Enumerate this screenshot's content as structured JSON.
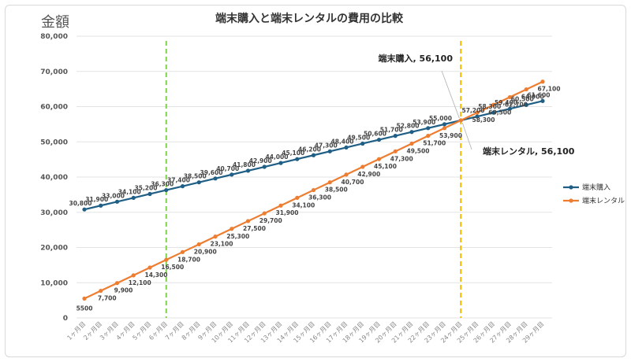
{
  "chart_data": {
    "type": "line",
    "title": "端末購入と端末レンタルの費用の比較",
    "ylabel": "金額",
    "xlabel": "",
    "ylim": [
      0,
      80000
    ],
    "yticks": [
      "0",
      "10,000",
      "20,000",
      "30,000",
      "40,000",
      "50,000",
      "60,000",
      "70,000",
      "80,000"
    ],
    "grid": true,
    "legend": "right",
    "categories": [
      "1ヶ月目",
      "2ヶ月目",
      "3ヶ月目",
      "4ヶ月目",
      "5ヶ月目",
      "6ヶ月目",
      "7ヶ月目",
      "8ヶ月目",
      "9ヶ月目",
      "10ヶ月目",
      "11ヶ月目",
      "12ヶ月目",
      "13ヶ月目",
      "14ヶ月目",
      "15ヶ月目",
      "16ヶ月目",
      "17ヶ月目",
      "18ヶ月目",
      "19ヶ月目",
      "20ヶ月目",
      "21ヶ月目",
      "22ヶ月目",
      "23ヶ月目",
      "24ヶ月目",
      "25ヶ月目",
      "26ヶ月目",
      "27ヶ月目",
      "28ヶ月目",
      "29ヶ月目"
    ],
    "series": [
      {
        "name": "端末購入",
        "color": "#1f5f86",
        "values": [
          30800,
          31900,
          33000,
          34100,
          35200,
          36300,
          37400,
          38500,
          39600,
          40700,
          41800,
          42900,
          44000,
          45100,
          46200,
          47300,
          48400,
          49500,
          50600,
          51700,
          52800,
          53900,
          55000,
          56100,
          57200,
          58300,
          59400,
          60500,
          61600
        ],
        "labels": [
          "30,800",
          "31,900",
          "33,000",
          "34,100",
          "35,200",
          "36,300",
          "37,400",
          "38,500",
          "39,600",
          "40,700",
          "41,800",
          "42,900",
          "44,000",
          "45,100",
          "46,200",
          "47,300",
          "48,400",
          "49,500",
          "50,600",
          "51,700",
          "52,800",
          "53,900",
          "55,000",
          "",
          "57,200",
          "58,300",
          "59,400",
          "60,500",
          "61,600"
        ]
      },
      {
        "name": "端末レンタル",
        "color": "#ed7d31",
        "values": [
          5500,
          7700,
          9900,
          12100,
          14300,
          16500,
          18700,
          20900,
          23100,
          25300,
          27500,
          29700,
          31900,
          34100,
          36300,
          38500,
          40700,
          42900,
          45100,
          47300,
          49500,
          51700,
          53900,
          56100,
          58300,
          60500,
          62700,
          64900,
          67100
        ],
        "labels": [
          "5500",
          "7,700",
          "9,900",
          "12,100",
          "14,300",
          "16,500",
          "18,700",
          "20,900",
          "23,100",
          "25,300",
          "27,500",
          "29,700",
          "31,900",
          "34,100",
          "36,300",
          "38,500",
          "40,700",
          "42,900",
          "45,100",
          "47,300",
          "49,500",
          "51,700",
          "53,900",
          "",
          "58,300",
          "60,500",
          "62,700",
          "64,900",
          "67,100"
        ]
      }
    ],
    "reference_lines": [
      {
        "at": "6ヶ月目",
        "color": "#7fd14a"
      },
      {
        "at": "24ヶ月目",
        "color": "#f5b800"
      }
    ],
    "annotations": [
      {
        "text": "端末購入, 56,100",
        "series": "端末購入",
        "at": "24ヶ月目"
      },
      {
        "text": "端末レンタル, 56,100",
        "series": "端末レンタル",
        "at": "24ヶ月目"
      }
    ]
  }
}
